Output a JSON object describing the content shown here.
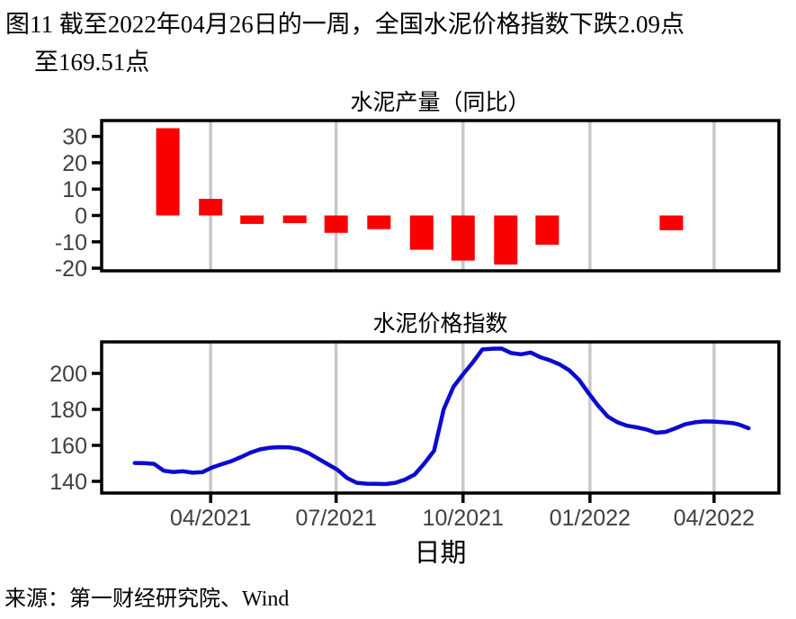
{
  "figure": {
    "title_line1": "图11  截至2022年04月26日的一周，全国水泥价格指数下跌2.09点",
    "title_line2": "至169.51点",
    "source": "来源：第一财经研究院、Wind"
  },
  "x_axis": {
    "domain": [
      "2021-01-12",
      "2022-05-18"
    ],
    "ticks": [
      "2021-04-01",
      "2021-07-01",
      "2021-10-01",
      "2022-01-01",
      "2022-04-01"
    ],
    "tick_labels": [
      "04/2021",
      "07/2021",
      "10/2021",
      "01/2022",
      "04/2022"
    ],
    "label": "日期"
  },
  "colors": {
    "bar": "#fa0000",
    "line": "#0b0bd0",
    "gridline": "#c8c8c8",
    "axis": "#000000",
    "tick_text": "#404040"
  },
  "chart_data": [
    {
      "type": "bar",
      "title": "水泥产量（同比）",
      "xlabel": "",
      "ylabel": "",
      "ylim": [
        -21,
        36
      ],
      "yticks": [
        30,
        20,
        10,
        0,
        -10,
        -20
      ],
      "grid": "vertical",
      "points": [
        [
          "2021-03-01",
          33.1
        ],
        [
          "2021-04-01",
          6.3
        ],
        [
          "2021-05-01",
          -3.2
        ],
        [
          "2021-06-01",
          -2.9
        ],
        [
          "2021-07-01",
          -6.6
        ],
        [
          "2021-08-01",
          -5.2
        ],
        [
          "2021-09-01",
          -13.0
        ],
        [
          "2021-10-01",
          -17.1
        ],
        [
          "2021-11-01",
          -18.6
        ],
        [
          "2021-12-01",
          -11.1
        ],
        [
          "2022-03-01",
          -5.6
        ]
      ]
    },
    {
      "type": "line",
      "title": "水泥价格指数",
      "xlabel": "日期",
      "ylabel": "",
      "ylim": [
        133.5,
        217.5
      ],
      "yticks": [
        200,
        180,
        160,
        140
      ],
      "grid": "vertical",
      "points": [
        [
          "2021-02-05",
          150.2
        ],
        [
          "2021-02-12",
          150.1
        ],
        [
          "2021-02-19",
          149.7
        ],
        [
          "2021-02-26",
          145.9
        ],
        [
          "2021-03-05",
          145.2
        ],
        [
          "2021-03-12",
          145.6
        ],
        [
          "2021-03-19",
          144.8
        ],
        [
          "2021-03-26",
          145.1
        ],
        [
          "2021-04-02",
          147.7
        ],
        [
          "2021-04-09",
          149.5
        ],
        [
          "2021-04-16",
          151.2
        ],
        [
          "2021-04-23",
          153.5
        ],
        [
          "2021-04-30",
          156.0
        ],
        [
          "2021-05-07",
          157.8
        ],
        [
          "2021-05-14",
          158.7
        ],
        [
          "2021-05-21",
          159.0
        ],
        [
          "2021-05-28",
          158.9
        ],
        [
          "2021-06-04",
          157.9
        ],
        [
          "2021-06-11",
          155.7
        ],
        [
          "2021-06-18",
          152.6
        ],
        [
          "2021-06-25",
          149.5
        ],
        [
          "2021-07-02",
          146.4
        ],
        [
          "2021-07-09",
          141.8
        ],
        [
          "2021-07-16",
          139.2
        ],
        [
          "2021-07-23",
          138.7
        ],
        [
          "2021-07-30",
          138.6
        ],
        [
          "2021-08-06",
          138.5
        ],
        [
          "2021-08-13",
          139.2
        ],
        [
          "2021-08-20",
          141.0
        ],
        [
          "2021-08-27",
          143.8
        ],
        [
          "2021-09-03",
          150.0
        ],
        [
          "2021-09-10",
          157.0
        ],
        [
          "2021-09-17",
          180.0
        ],
        [
          "2021-09-24",
          192.5
        ],
        [
          "2021-10-01",
          199.5
        ],
        [
          "2021-10-08",
          206.0
        ],
        [
          "2021-10-15",
          213.3
        ],
        [
          "2021-10-22",
          213.7
        ],
        [
          "2021-10-29",
          213.8
        ],
        [
          "2021-11-05",
          211.3
        ],
        [
          "2021-11-12",
          210.6
        ],
        [
          "2021-11-19",
          211.6
        ],
        [
          "2021-11-26",
          209.0
        ],
        [
          "2021-12-03",
          207.3
        ],
        [
          "2021-12-10",
          205.0
        ],
        [
          "2021-12-17",
          201.7
        ],
        [
          "2021-12-24",
          196.5
        ],
        [
          "2021-12-31",
          189.0
        ],
        [
          "2022-01-07",
          182.0
        ],
        [
          "2022-01-14",
          176.0
        ],
        [
          "2022-01-21",
          172.8
        ],
        [
          "2022-01-28",
          170.9
        ],
        [
          "2022-02-04",
          170.0
        ],
        [
          "2022-02-11",
          168.8
        ],
        [
          "2022-02-18",
          167.0
        ],
        [
          "2022-02-25",
          167.5
        ],
        [
          "2022-03-04",
          169.5
        ],
        [
          "2022-03-11",
          171.7
        ],
        [
          "2022-03-18",
          172.8
        ],
        [
          "2022-03-25",
          173.3
        ],
        [
          "2022-04-01",
          173.2
        ],
        [
          "2022-04-08",
          172.8
        ],
        [
          "2022-04-15",
          172.3
        ],
        [
          "2022-04-19",
          171.6
        ],
        [
          "2022-04-26",
          169.51
        ]
      ]
    }
  ]
}
